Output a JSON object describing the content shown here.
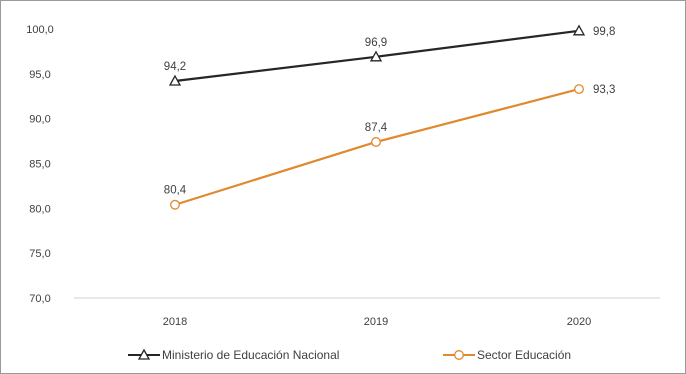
{
  "chart_data": {
    "type": "line",
    "categories": [
      "2018",
      "2019",
      "2020"
    ],
    "series": [
      {
        "name": "Ministerio de Educación Nacional",
        "values": [
          94.2,
          96.9,
          99.8
        ],
        "labels": [
          "94,2",
          "96,9",
          "99,8"
        ],
        "color": "#262626",
        "marker": "triangle"
      },
      {
        "name": "Sector Educación",
        "values": [
          80.4,
          87.4,
          93.3
        ],
        "labels": [
          "80,4",
          "87,4",
          "93,3"
        ],
        "color": "#e0892f",
        "marker": "circle"
      }
    ],
    "ylim": [
      70,
      100
    ],
    "yticks": [
      "70,0",
      "75,0",
      "80,0",
      "85,0",
      "90,0",
      "95,0",
      "100,0"
    ],
    "grid": false,
    "legend_position": "bottom"
  }
}
